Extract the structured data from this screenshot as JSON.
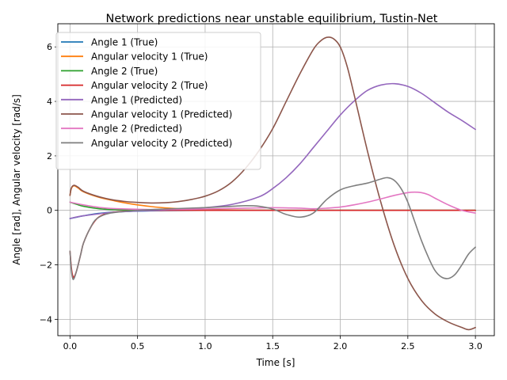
{
  "chart_data": {
    "type": "line",
    "title": "Network predictions near unstable equilibrium, Tustin-Net",
    "xlabel": "Time [s]",
    "ylabel": "Angle [rad], Angular velocity [rad/s]",
    "xlim": [
      -0.09,
      3.14
    ],
    "ylim": [
      -4.6,
      6.85
    ],
    "xticks": [
      0.0,
      0.5,
      1.0,
      1.5,
      2.0,
      2.5,
      3.0
    ],
    "xtick_labels": [
      "0.0",
      "0.5",
      "1.0",
      "1.5",
      "2.0",
      "2.5",
      "3.0"
    ],
    "yticks": [
      -4,
      -2,
      0,
      2,
      4,
      6
    ],
    "ytick_labels": [
      "−4",
      "−2",
      "0",
      "2",
      "4",
      "6"
    ],
    "grid": true,
    "legend_position": "upper-left",
    "series": [
      {
        "name": "Angle 1 (True)",
        "color": "#1f77b4",
        "x": [
          0,
          0.05,
          0.1,
          0.2,
          0.3,
          0.5,
          0.7,
          1.0,
          1.5,
          2.0,
          2.5,
          3.0
        ],
        "y": [
          -0.3,
          -0.25,
          -0.2,
          -0.12,
          -0.07,
          -0.03,
          -0.01,
          0.0,
          0.0,
          0.0,
          0.0,
          0.0
        ]
      },
      {
        "name": "Angular velocity 1 (True)",
        "color": "#ff7f0e",
        "x": [
          0,
          0.01,
          0.03,
          0.06,
          0.1,
          0.2,
          0.3,
          0.4,
          0.5,
          0.6,
          0.7,
          0.8,
          1.0,
          1.5,
          2.0,
          2.5,
          3.0
        ],
        "y": [
          0.55,
          0.8,
          0.9,
          0.82,
          0.68,
          0.5,
          0.38,
          0.28,
          0.2,
          0.14,
          0.09,
          0.06,
          0.02,
          0.0,
          0.0,
          0.0,
          0.0
        ]
      },
      {
        "name": "Angle 2 (True)",
        "color": "#2ca02c",
        "x": [
          0,
          0.05,
          0.1,
          0.2,
          0.3,
          0.5,
          0.7,
          1.0,
          1.5,
          2.0,
          2.5,
          3.0
        ],
        "y": [
          0.3,
          0.22,
          0.15,
          0.07,
          0.03,
          0.01,
          0.0,
          0.0,
          0.0,
          0.0,
          0.0,
          0.0
        ]
      },
      {
        "name": "Angular velocity 2 (True)",
        "color": "#d62728",
        "x": [
          0,
          0.01,
          0.02,
          0.03,
          0.05,
          0.08,
          0.1,
          0.15,
          0.2,
          0.25,
          0.3,
          0.4,
          0.5,
          0.7,
          1.0,
          1.5,
          2.0,
          2.5,
          3.0
        ],
        "y": [
          -1.5,
          -2.1,
          -2.4,
          -2.45,
          -2.2,
          -1.6,
          -1.2,
          -0.65,
          -0.3,
          -0.15,
          -0.08,
          -0.03,
          -0.01,
          0.0,
          0.0,
          0.0,
          0.0,
          0.0,
          0.0
        ]
      },
      {
        "name": "Angle 1 (Predicted)",
        "color": "#9467bd",
        "x": [
          0,
          0.1,
          0.3,
          0.5,
          0.7,
          1.0,
          1.2,
          1.4,
          1.5,
          1.6,
          1.7,
          1.8,
          1.9,
          2.0,
          2.1,
          2.2,
          2.3,
          2.4,
          2.5,
          2.6,
          2.7,
          2.8,
          2.9,
          3.0
        ],
        "y": [
          -0.3,
          -0.2,
          -0.08,
          -0.02,
          0.02,
          0.1,
          0.22,
          0.5,
          0.8,
          1.2,
          1.7,
          2.3,
          2.9,
          3.5,
          4.0,
          4.4,
          4.6,
          4.65,
          4.55,
          4.3,
          3.95,
          3.6,
          3.3,
          2.97
        ]
      },
      {
        "name": "Angular velocity 1 (Predicted)",
        "color": "#8c564b",
        "x": [
          0,
          0.01,
          0.03,
          0.06,
          0.1,
          0.2,
          0.3,
          0.4,
          0.5,
          0.6,
          0.7,
          0.8,
          0.9,
          1.0,
          1.1,
          1.2,
          1.3,
          1.4,
          1.5,
          1.6,
          1.7,
          1.8,
          1.85,
          1.9,
          1.95,
          2.0,
          2.05,
          2.1,
          2.2,
          2.3,
          2.4,
          2.5,
          2.6,
          2.7,
          2.8,
          2.9,
          2.95,
          3.0
        ],
        "y": [
          0.55,
          0.82,
          0.92,
          0.85,
          0.7,
          0.52,
          0.4,
          0.33,
          0.29,
          0.27,
          0.28,
          0.32,
          0.4,
          0.52,
          0.72,
          1.05,
          1.55,
          2.2,
          3.0,
          4.0,
          5.0,
          5.9,
          6.2,
          6.35,
          6.3,
          6.0,
          5.3,
          4.3,
          2.2,
          0.3,
          -1.3,
          -2.5,
          -3.3,
          -3.8,
          -4.1,
          -4.3,
          -4.38,
          -4.3
        ]
      },
      {
        "name": "Angle 2 (Predicted)",
        "color": "#e377c2",
        "x": [
          0,
          0.1,
          0.2,
          0.3,
          0.5,
          0.7,
          1.0,
          1.3,
          1.5,
          1.7,
          1.8,
          1.9,
          2.0,
          2.1,
          2.2,
          2.3,
          2.4,
          2.5,
          2.55,
          2.6,
          2.65,
          2.7,
          2.8,
          2.9,
          3.0
        ],
        "y": [
          0.3,
          0.2,
          0.12,
          0.07,
          0.04,
          0.03,
          0.05,
          0.08,
          0.1,
          0.08,
          0.06,
          0.08,
          0.12,
          0.2,
          0.3,
          0.42,
          0.55,
          0.65,
          0.67,
          0.65,
          0.58,
          0.45,
          0.2,
          0.0,
          -0.1
        ]
      },
      {
        "name": "Angular velocity 2 (Predicted)",
        "color": "#7f7f7f",
        "x": [
          0,
          0.01,
          0.02,
          0.03,
          0.05,
          0.08,
          0.1,
          0.15,
          0.2,
          0.3,
          0.5,
          0.7,
          1.0,
          1.2,
          1.3,
          1.4,
          1.5,
          1.55,
          1.6,
          1.7,
          1.8,
          1.9,
          2.0,
          2.1,
          2.2,
          2.3,
          2.35,
          2.4,
          2.45,
          2.5,
          2.55,
          2.6,
          2.65,
          2.7,
          2.75,
          2.8,
          2.85,
          2.9,
          2.95,
          3.0
        ],
        "y": [
          -1.5,
          -2.2,
          -2.5,
          -2.5,
          -2.2,
          -1.6,
          -1.2,
          -0.65,
          -0.3,
          -0.1,
          0.0,
          0.05,
          0.1,
          0.15,
          0.17,
          0.15,
          0.05,
          -0.05,
          -0.15,
          -0.25,
          -0.1,
          0.4,
          0.75,
          0.9,
          1.0,
          1.15,
          1.2,
          1.1,
          0.8,
          0.3,
          -0.4,
          -1.1,
          -1.7,
          -2.2,
          -2.45,
          -2.5,
          -2.35,
          -2.0,
          -1.6,
          -1.35
        ]
      }
    ]
  }
}
